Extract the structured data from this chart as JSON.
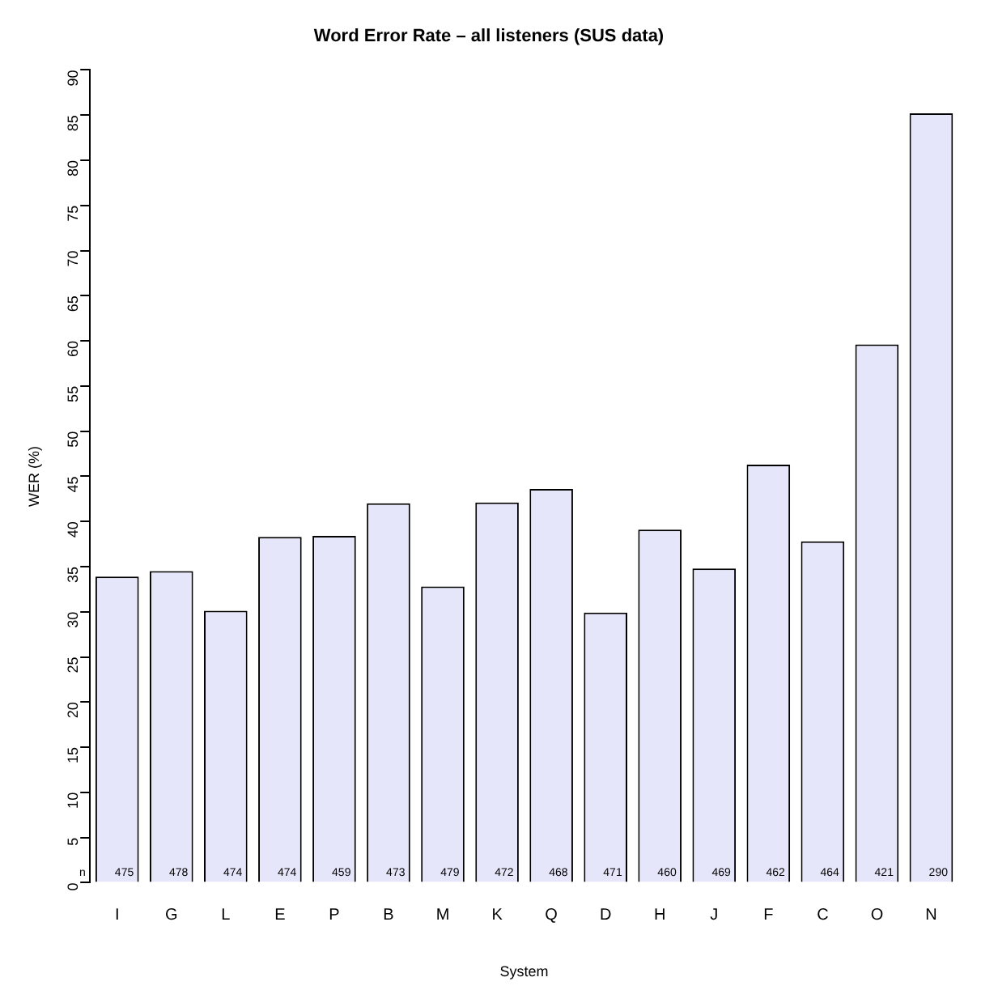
{
  "chart_data": {
    "type": "bar",
    "title": "Word Error Rate – all listeners (SUS data)",
    "xlabel": "System",
    "ylabel": "WER (%)",
    "categories": [
      "I",
      "G",
      "L",
      "E",
      "P",
      "B",
      "M",
      "K",
      "Q",
      "D",
      "H",
      "J",
      "F",
      "C",
      "O",
      "N"
    ],
    "values": [
      33.9,
      34.5,
      30.1,
      38.3,
      38.4,
      42.0,
      32.8,
      42.1,
      43.6,
      29.9,
      39.1,
      34.8,
      46.3,
      37.8,
      59.6,
      85.2
    ],
    "color": "#e6e6fa",
    "ylim": [
      0,
      90
    ],
    "yticks": [
      0,
      5,
      10,
      15,
      20,
      25,
      30,
      35,
      40,
      45,
      50,
      55,
      60,
      65,
      70,
      75,
      80,
      85,
      90
    ],
    "grid": false,
    "legend": false,
    "annotations": [
      "n",
      {
        "text": "475",
        "x": "I",
        "y": 0
      },
      {
        "text": "478",
        "x": "G",
        "y": 0
      },
      {
        "text": "474",
        "x": "L",
        "y": 0
      },
      {
        "text": "474",
        "x": "E",
        "y": 0
      },
      {
        "text": "459",
        "x": "P",
        "y": 0
      },
      {
        "text": "473",
        "x": "B",
        "y": 0
      },
      {
        "text": "479",
        "x": "M",
        "y": 0
      },
      {
        "text": "472",
        "x": "K",
        "y": 0
      },
      {
        "text": "468",
        "x": "Q",
        "y": 0
      },
      {
        "text": "471",
        "x": "D",
        "y": 0
      },
      {
        "text": "460",
        "x": "H",
        "y": 0
      },
      {
        "text": "469",
        "x": "J",
        "y": 0
      },
      {
        "text": "462",
        "x": "F",
        "y": 0
      },
      {
        "text": "464",
        "x": "C",
        "y": 0
      },
      {
        "text": "421",
        "x": "O",
        "y": 0
      },
      {
        "text": "290",
        "x": "N",
        "y": 0
      }
    ]
  }
}
